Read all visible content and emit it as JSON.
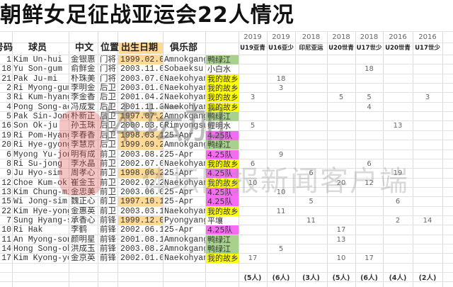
{
  "title": "朝鲜女足征战亚运会22人情况",
  "headers": {
    "number": "号码",
    "player": "球员",
    "chinese": "中文",
    "position": "位置",
    "birth": "出生日期",
    "club": "俱乐部"
  },
  "tournaments": [
    {
      "year": "2019",
      "event": "U19亚青",
      "count": "(5人)"
    },
    {
      "year": "2019",
      "event": "U16亚少",
      "count": "(6人)"
    },
    {
      "year": "2018",
      "event": "印尼亚运",
      "count": "(3人)"
    },
    {
      "year": "2018",
      "event": "U20世青",
      "count": "(5人)"
    },
    {
      "year": "2018",
      "event": "U17世少",
      "count": "(6人)"
    },
    {
      "year": "2016",
      "event": "U20世青",
      "count": "(4人)"
    },
    {
      "year": "2016",
      "event": "U17世少",
      "count": "(2人)"
    }
  ],
  "colors": {
    "green": "#a9d18e",
    "yellow": "#ffff00",
    "magenta": "#f56cf2",
    "none": "#ffffff",
    "date_highlight": "#ffd995"
  },
  "players": [
    {
      "no": "1",
      "name": "Kim Un-hui",
      "cn": "金银惠",
      "pos": "门将",
      "birth": "1999.02.01",
      "hl": true,
      "club": "Amnokgang",
      "club_cn": "鸭绿江",
      "club_color": "green",
      "shirts": [
        "",
        "",
        "",
        "",
        "",
        "",
        ""
      ]
    },
    {
      "no": "18",
      "name": "Yu Son-gum",
      "cn": "俞鲜金",
      "pos": "门将",
      "birth": "2003.11.08",
      "hl": false,
      "club": "Sobaeksu",
      "club_cn": "小白水",
      "club_color": "none",
      "shirts": [
        "",
        "",
        "",
        "",
        "18",
        "",
        ""
      ]
    },
    {
      "no": "21",
      "name": "Pak Ju-mi",
      "cn": "朴珠美",
      "pos": "门将",
      "birth": "2003.07.01",
      "hl": false,
      "club": "Naekohyang",
      "club_cn": "我的故乡",
      "club_color": "yellow",
      "shirts": [
        "",
        "18",
        "",
        "",
        "",
        "",
        ""
      ]
    },
    {
      "no": "2",
      "name": "Ri Myong-gum",
      "cn": "李明金",
      "pos": "后卫",
      "birth": "2003.01.01",
      "hl": false,
      "club": "Naekohyang",
      "club_cn": "我的故乡",
      "club_color": "yellow",
      "shirts": [
        "",
        "3",
        "",
        "",
        "",
        "",
        ""
      ]
    },
    {
      "no": "3",
      "name": "Ri Kum-hyang",
      "cn": "李金香",
      "pos": "后卫",
      "birth": "2001.04.22",
      "hl": false,
      "club": "Naekohyang",
      "club_cn": "我的故乡",
      "club_color": "yellow",
      "shirts": [
        "3",
        "",
        "",
        "5",
        "5",
        "",
        "3"
      ]
    },
    {
      "no": "4",
      "name": "Pong Song-ae",
      "cn": "冯成爱",
      "pos": "后卫",
      "birth": "2001.11.30",
      "hl": false,
      "club": "Naekohyang",
      "club_cn": "我的故乡",
      "club_color": "yellow",
      "shirts": [
        "",
        "",
        "",
        "",
        "4",
        "",
        ""
      ]
    },
    {
      "no": "5",
      "name": "Pak Sin-Jong",
      "cn": "朴新正",
      "pos": "后卫",
      "birth": "1997.07.27",
      "hl": true,
      "club": "Amnokgang",
      "club_cn": "鸭绿江",
      "club_color": "green",
      "shirts": [
        "",
        "",
        "",
        "",
        "",
        "",
        ""
      ]
    },
    {
      "no": "16",
      "name": "Son Ok-ju",
      "cn": "孙玉珠",
      "pos": "后卫",
      "birth": "2000.03.07",
      "hl": false,
      "club": "Rimyongsu",
      "club_cn": "鲤明水",
      "club_color": "none",
      "shirts": [
        "5",
        "",
        "",
        "",
        "",
        "13",
        ""
      ]
    },
    {
      "no": "19",
      "name": "Ri Pom-Hyang",
      "cn": "李春香",
      "pos": "后卫",
      "birth": "1998.03.15",
      "hl": true,
      "club": "25-Apr",
      "club_cn": "4.25队",
      "club_color": "magenta",
      "shirts": [
        "",
        "",
        "",
        "",
        "",
        "",
        ""
      ]
    },
    {
      "no": "20",
      "name": "Ri Hye-gyong",
      "cn": "李慧京",
      "pos": "后卫",
      "birth": "1999.09.24",
      "hl": true,
      "club": "Amnokgang",
      "club_cn": "鸭绿江",
      "club_color": "green",
      "shirts": [
        "",
        "",
        "",
        "",
        "",
        "",
        ""
      ]
    },
    {
      "no": "6",
      "name": "Myong Yu-jong",
      "cn": "明有成",
      "pos": "前卫",
      "birth": "2003.08.29",
      "hl": false,
      "club": "25-Apr",
      "club_cn": "4.25队",
      "club_color": "magenta",
      "shirts": [
        "",
        "9",
        "",
        "",
        "",
        "",
        ""
      ]
    },
    {
      "no": "8",
      "name": "Ri Su-jong",
      "cn": "李水晶",
      "pos": "前卫",
      "birth": "2002.07.05",
      "hl": false,
      "club": "Naekohyang",
      "club_cn": "我的故乡",
      "club_color": "yellow",
      "shirts": [
        "6",
        "",
        "",
        "",
        "6",
        "",
        ""
      ]
    },
    {
      "no": "9",
      "name": "Ju Hyo-sim",
      "cn": "周孝心",
      "pos": "前卫",
      "birth": "1998.06.21",
      "hl": true,
      "club": "25-Apr",
      "club_cn": "4.25队",
      "club_color": "magenta",
      "shirts": [
        "",
        "",
        "6",
        "",
        "",
        "19",
        ""
      ]
    },
    {
      "no": "12",
      "name": "Choe Kum-ok",
      "cn": "崔金玉",
      "pos": "前卫",
      "birth": "2002.02.23",
      "hl": false,
      "club": "Naekohyang",
      "club_cn": "我的故乡",
      "club_color": "yellow",
      "shirts": [
        "10",
        "",
        "",
        "20",
        "12",
        "",
        ""
      ]
    },
    {
      "no": "13",
      "name": "Kim Chung-mi",
      "cn": "金忠美",
      "pos": "前卫",
      "birth": "2003.06.01",
      "hl": false,
      "club": "25-Apr",
      "club_cn": "4.25队",
      "club_color": "magenta",
      "shirts": [
        "",
        "10",
        "",
        "",
        "",
        "",
        ""
      ]
    },
    {
      "no": "15",
      "name": "Wi Jong-sim",
      "cn": "魏正心",
      "pos": "前卫",
      "birth": "1997.10.13",
      "hl": true,
      "club": "25-Apr",
      "club_cn": "4.25队",
      "club_color": "magenta",
      "shirts": [
        "",
        "",
        "5",
        "",
        "",
        "6",
        ""
      ]
    },
    {
      "no": "22",
      "name": "Kim Hye-yong",
      "cn": "金惠英",
      "pos": "前卫",
      "birth": "2003.03.11",
      "hl": false,
      "club": "Naekohyang",
      "club_cn": "我的故乡",
      "club_color": "yellow",
      "shirts": [
        "",
        "11",
        "",
        "",
        "",
        "",
        ""
      ]
    },
    {
      "no": "7",
      "name": "Sung Hyang-sim",
      "cn": "承香心",
      "pos": "前锋",
      "birth": "1999.12.02",
      "hl": true,
      "club": "Pyongyang",
      "club_cn": "平壤",
      "club_color": "none",
      "shirts": [
        "",
        "",
        "11",
        "",
        "",
        "2",
        "14"
      ]
    },
    {
      "no": "10",
      "name": "Ri Hak",
      "cn": "李鹤",
      "pos": "前锋",
      "birth": "2002.06.12",
      "hl": false,
      "club": "25-Apr",
      "club_cn": "4.25队",
      "club_color": "magenta",
      "shirts": [
        "",
        "",
        "",
        "17",
        "",
        "",
        ""
      ]
    },
    {
      "no": "11",
      "name": "An Myong-song",
      "cn": "颜明星",
      "pos": "前锋",
      "birth": "2001.08.16",
      "hl": false,
      "club": "Amnokgang",
      "club_cn": "鸭绿江",
      "club_color": "green",
      "shirts": [
        "",
        "",
        "",
        "13",
        "",
        "",
        ""
      ]
    },
    {
      "no": "14",
      "name": "Hong Song-ok",
      "cn": "洪成玉",
      "pos": "前锋",
      "birth": "2003.08.21",
      "hl": false,
      "club": "Amnokgang",
      "club_cn": "鸭绿江",
      "club_color": "green",
      "shirts": [
        "",
        "5",
        "",
        "",
        "",
        "",
        ""
      ]
    },
    {
      "no": "17",
      "name": "Kim Kyong-yong",
      "cn": "金京英",
      "pos": "前锋",
      "birth": "2002.01.02",
      "hl": false,
      "club": "Naekohyang",
      "club_cn": "我的故乡",
      "club_color": "yellow",
      "shirts": [
        "17",
        "",
        "",
        "10",
        "17",
        "",
        ""
      ]
    }
  ],
  "watermark": {
    "logo": "体坛加",
    "text": "体坛网报新闻客户端"
  }
}
